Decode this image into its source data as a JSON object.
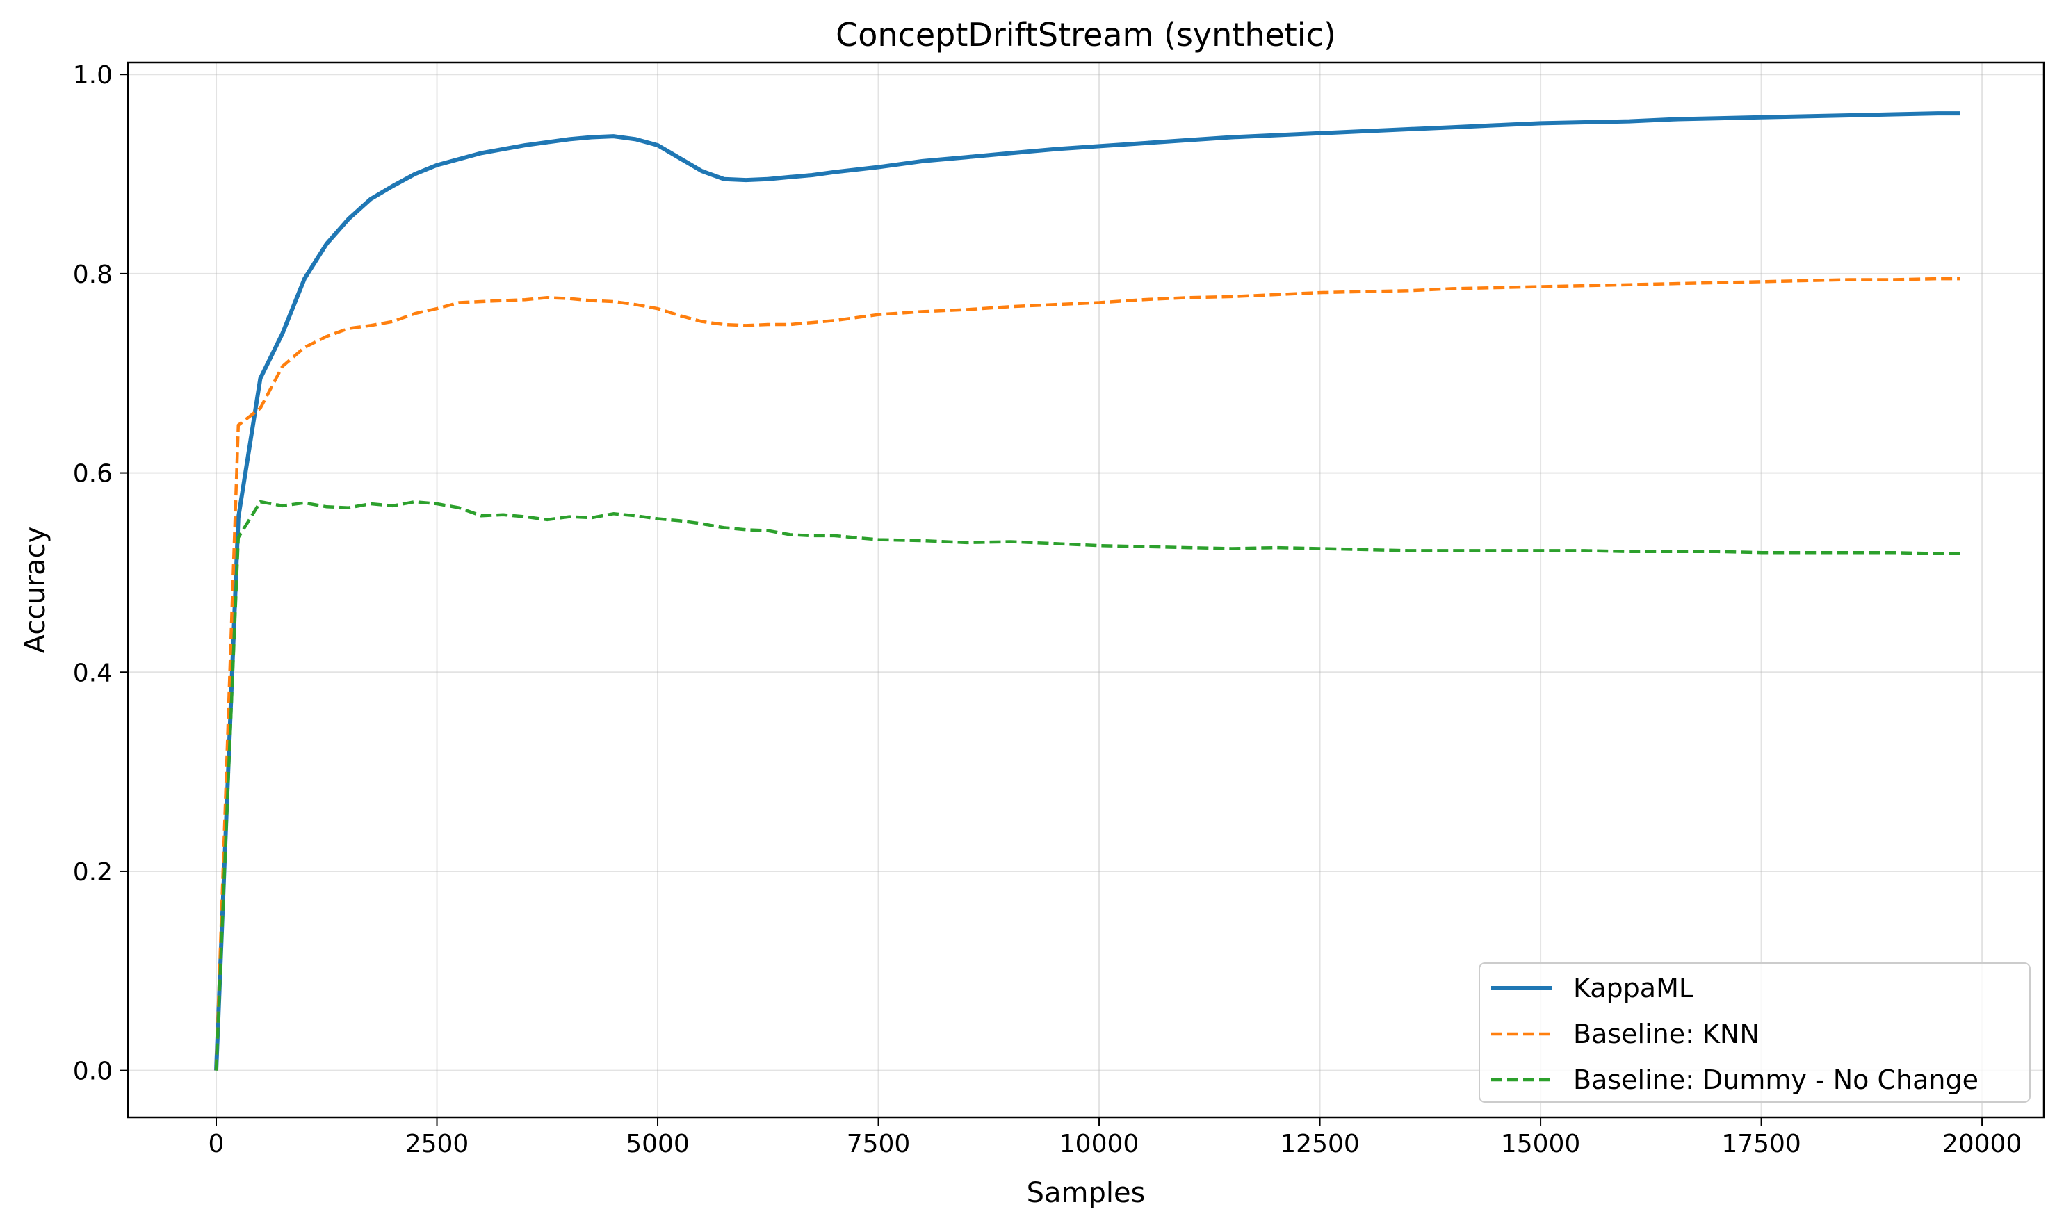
{
  "chart_data": {
    "type": "line",
    "title": "ConceptDriftStream (synthetic)",
    "xlabel": "Samples",
    "ylabel": "Accuracy",
    "xlim": [
      -1000,
      20700
    ],
    "ylim": [
      -0.047,
      1.012
    ],
    "xticks": [
      0,
      2500,
      5000,
      7500,
      10000,
      12500,
      15000,
      17500,
      20000
    ],
    "yticks": [
      0.0,
      0.2,
      0.4,
      0.6,
      0.8,
      1.0
    ],
    "xtick_labels": [
      "0",
      "2500",
      "5000",
      "7500",
      "10000",
      "12500",
      "15000",
      "17500",
      "20000"
    ],
    "ytick_labels": [
      "0.0",
      "0.2",
      "0.4",
      "0.6",
      "0.8",
      "1.0"
    ],
    "grid": true,
    "legend_position": "bottom-right",
    "series": [
      {
        "name": "KappaML",
        "color": "#1f77b4",
        "style": "solid",
        "x": [
          0,
          250,
          500,
          750,
          1000,
          1250,
          1500,
          1750,
          2000,
          2250,
          2500,
          2750,
          3000,
          3250,
          3500,
          3750,
          4000,
          4250,
          4500,
          4750,
          5000,
          5250,
          5500,
          5750,
          6000,
          6250,
          6500,
          6750,
          7000,
          7500,
          8000,
          8500,
          9000,
          9500,
          10000,
          10500,
          11000,
          11500,
          12000,
          12500,
          13000,
          13500,
          14000,
          14500,
          15000,
          15500,
          16000,
          16500,
          17000,
          17500,
          18000,
          18500,
          19000,
          19500,
          19750
        ],
        "y": [
          0.0,
          0.555,
          0.695,
          0.74,
          0.795,
          0.83,
          0.855,
          0.875,
          0.888,
          0.9,
          0.909,
          0.915,
          0.921,
          0.925,
          0.929,
          0.932,
          0.935,
          0.937,
          0.938,
          0.935,
          0.929,
          0.916,
          0.903,
          0.895,
          0.894,
          0.895,
          0.897,
          0.899,
          0.902,
          0.907,
          0.913,
          0.917,
          0.921,
          0.925,
          0.928,
          0.931,
          0.934,
          0.937,
          0.939,
          0.941,
          0.943,
          0.945,
          0.947,
          0.949,
          0.951,
          0.952,
          0.953,
          0.955,
          0.956,
          0.957,
          0.958,
          0.959,
          0.96,
          0.961,
          0.961
        ]
      },
      {
        "name": "Baseline: KNN",
        "color": "#ff7f0e",
        "style": "dashed",
        "x": [
          0,
          250,
          500,
          750,
          1000,
          1250,
          1500,
          1750,
          2000,
          2250,
          2500,
          2750,
          3000,
          3250,
          3500,
          3750,
          4000,
          4250,
          4500,
          4750,
          5000,
          5250,
          5500,
          5750,
          6000,
          6250,
          6500,
          6750,
          7000,
          7500,
          8000,
          8500,
          9000,
          9500,
          10000,
          10500,
          11000,
          11500,
          12000,
          12500,
          13000,
          13500,
          14000,
          14500,
          15000,
          15500,
          16000,
          16500,
          17000,
          17500,
          18000,
          18500,
          19000,
          19500,
          19750
        ],
        "y": [
          0.0,
          0.648,
          0.665,
          0.707,
          0.726,
          0.737,
          0.745,
          0.748,
          0.752,
          0.76,
          0.765,
          0.771,
          0.772,
          0.773,
          0.774,
          0.776,
          0.775,
          0.773,
          0.772,
          0.769,
          0.765,
          0.758,
          0.752,
          0.749,
          0.748,
          0.749,
          0.749,
          0.751,
          0.753,
          0.759,
          0.762,
          0.764,
          0.767,
          0.769,
          0.771,
          0.774,
          0.776,
          0.777,
          0.779,
          0.781,
          0.782,
          0.783,
          0.785,
          0.786,
          0.787,
          0.788,
          0.789,
          0.79,
          0.791,
          0.792,
          0.793,
          0.794,
          0.794,
          0.795,
          0.795
        ]
      },
      {
        "name": "Baseline: Dummy - No Change",
        "color": "#2ca02c",
        "style": "dashed",
        "x": [
          0,
          250,
          500,
          750,
          1000,
          1250,
          1500,
          1750,
          2000,
          2250,
          2500,
          2750,
          3000,
          3250,
          3500,
          3750,
          4000,
          4250,
          4500,
          4750,
          5000,
          5250,
          5500,
          5750,
          6000,
          6250,
          6500,
          6750,
          7000,
          7500,
          8000,
          8500,
          9000,
          9500,
          10000,
          10500,
          11000,
          11500,
          12000,
          12500,
          13000,
          13500,
          14000,
          14500,
          15000,
          15500,
          16000,
          16500,
          17000,
          17500,
          18000,
          18500,
          19000,
          19500,
          19750
        ],
        "y": [
          0.0,
          0.535,
          0.571,
          0.567,
          0.57,
          0.566,
          0.565,
          0.569,
          0.567,
          0.571,
          0.569,
          0.565,
          0.557,
          0.558,
          0.556,
          0.553,
          0.556,
          0.555,
          0.559,
          0.557,
          0.554,
          0.552,
          0.549,
          0.545,
          0.543,
          0.542,
          0.538,
          0.537,
          0.537,
          0.533,
          0.532,
          0.53,
          0.531,
          0.529,
          0.527,
          0.526,
          0.525,
          0.524,
          0.525,
          0.524,
          0.523,
          0.522,
          0.522,
          0.522,
          0.522,
          0.522,
          0.521,
          0.521,
          0.521,
          0.52,
          0.52,
          0.52,
          0.52,
          0.519,
          0.519
        ]
      }
    ]
  }
}
